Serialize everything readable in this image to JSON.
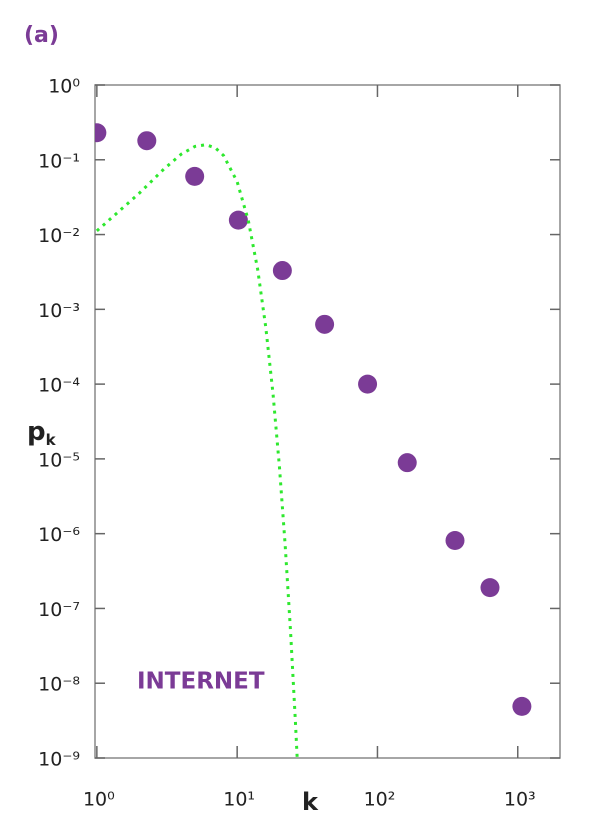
{
  "chart_data": {
    "type": "scatter",
    "panel_label": "(a)",
    "xlabel": "k",
    "ylabel": "p",
    "ylabel_subscript": "k",
    "xscale": "log",
    "yscale": "log",
    "xlim": [
      0.97,
      2000
    ],
    "ylim": [
      1e-09,
      1
    ],
    "xticks": [
      {
        "value": 1,
        "label": "10⁰"
      },
      {
        "value": 10,
        "label": "10¹"
      },
      {
        "value": 100,
        "label": "10²"
      },
      {
        "value": 1000,
        "label": "10³"
      }
    ],
    "yticks": [
      {
        "value": 1,
        "label": "10⁰"
      },
      {
        "value": 0.1,
        "label": "10⁻¹"
      },
      {
        "value": 0.01,
        "label": "10⁻²"
      },
      {
        "value": 0.001,
        "label": "10⁻³"
      },
      {
        "value": 0.0001,
        "label": "10⁻⁴"
      },
      {
        "value": 1e-05,
        "label": "10⁻⁵"
      },
      {
        "value": 1e-06,
        "label": "10⁻⁶"
      },
      {
        "value": 1e-07,
        "label": "10⁻⁷"
      },
      {
        "value": 1e-08,
        "label": "10⁻⁸"
      },
      {
        "value": 1e-09,
        "label": "10⁻⁹"
      }
    ],
    "grid": false,
    "series": [
      {
        "name": "INTERNET",
        "type": "scatter",
        "color": "#7b3b96",
        "x": [
          1,
          2.27,
          4.98,
          10.2,
          21,
          42,
          85,
          163,
          357,
          634,
          1070
        ],
        "values": [
          0.23,
          0.18,
          0.06,
          0.0156,
          0.0033,
          0.00063,
          0.0001,
          8.9e-06,
          8.1e-07,
          1.9e-07,
          4.9e-09
        ]
      },
      {
        "type": "line",
        "style": "dotted",
        "color": "#2ee82e",
        "x": [
          1,
          2,
          3,
          4,
          5,
          6,
          7,
          8,
          10,
          12,
          14,
          16,
          18,
          20,
          22,
          24,
          26,
          27
        ],
        "values": [
          0.0112,
          0.0355,
          0.075,
          0.119,
          0.151,
          0.159,
          0.144,
          0.114,
          0.0509,
          0.0155,
          0.00342,
          0.000573,
          7.53e-05,
          7.96e-06,
          6.93e-07,
          5.05e-08,
          3.12e-09,
          7.3e-10
        ]
      }
    ]
  }
}
